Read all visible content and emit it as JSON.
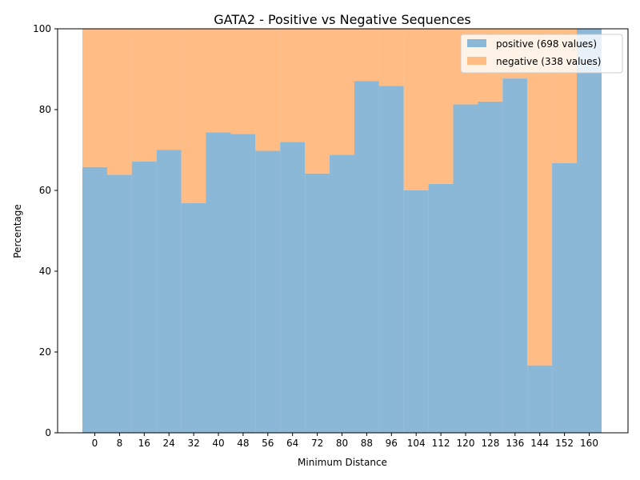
{
  "chart_data": {
    "type": "bar",
    "stacked": true,
    "title": "GATA2 - Positive vs Negative Sequences",
    "xlabel": "Minimum Distance",
    "ylabel": "Percentage",
    "categories": [
      "0",
      "8",
      "16",
      "24",
      "32",
      "40",
      "48",
      "56",
      "64",
      "72",
      "80",
      "88",
      "96",
      "104",
      "112",
      "120",
      "128",
      "136",
      "144",
      "152",
      "160"
    ],
    "series": [
      {
        "name": "positive (698 values)",
        "color": "#8cb8d8",
        "values": [
          65.8,
          63.9,
          67.2,
          70.0,
          56.9,
          74.4,
          74.0,
          69.8,
          72.0,
          64.2,
          68.8,
          87.1,
          85.9,
          60.0,
          61.6,
          81.3,
          82.0,
          87.7,
          16.7,
          66.8,
          100.0
        ]
      },
      {
        "name": "negative (338 values)",
        "color": "#ffbd85",
        "values": [
          34.2,
          36.1,
          32.8,
          30.0,
          43.1,
          25.6,
          26.0,
          30.2,
          28.0,
          35.8,
          31.2,
          12.9,
          14.1,
          40.0,
          38.4,
          18.7,
          18.0,
          12.3,
          83.3,
          33.2,
          0.0
        ]
      }
    ],
    "ylim": [
      0,
      100
    ],
    "yticks": [
      0,
      20,
      40,
      60,
      80,
      100
    ],
    "legend_position": "top-right",
    "grid": false
  }
}
